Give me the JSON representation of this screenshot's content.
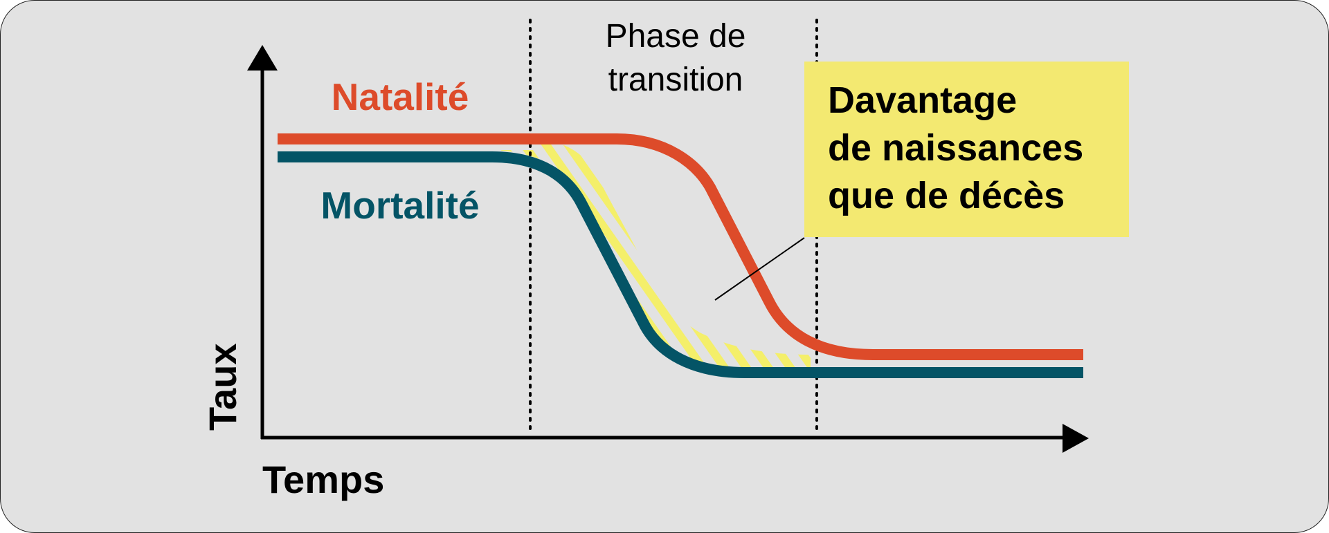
{
  "diagram": {
    "phase_label": [
      "Phase de",
      "transition"
    ],
    "callout": [
      "Davantage",
      "de naissances",
      "que de décès"
    ],
    "y_axis_label": "Taux",
    "x_axis_label": "Temps",
    "series": [
      {
        "name": "Natalité",
        "color": "#dd4b2a"
      },
      {
        "name": "Mortalité",
        "color": "#045466"
      }
    ],
    "colors": {
      "background": "#e2e2e2",
      "callout_fill": "#f3e971",
      "hatch": "#f4ef6a",
      "axis": "#000000"
    }
  }
}
